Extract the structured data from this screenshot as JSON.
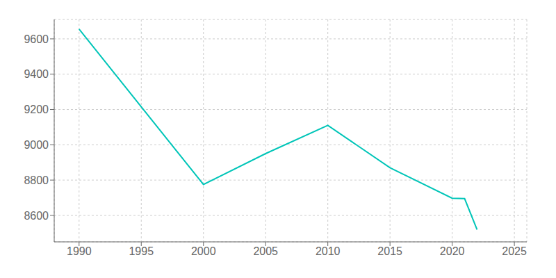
{
  "chart_data": {
    "type": "line",
    "x": [
      1990,
      2000,
      2005,
      2010,
      2015,
      2020,
      2021,
      2022
    ],
    "values": [
      9655,
      8775,
      8950,
      9110,
      8870,
      8697,
      8695,
      8519
    ],
    "color": "#00c5b8",
    "xlim": [
      1988,
      2026
    ],
    "ylim": [
      8450,
      9710
    ],
    "xticks": [
      1990,
      1995,
      2000,
      2005,
      2010,
      2015,
      2020,
      2025
    ],
    "yticks": [
      8600,
      8800,
      9000,
      9200,
      9400,
      9600
    ],
    "grid": true
  }
}
